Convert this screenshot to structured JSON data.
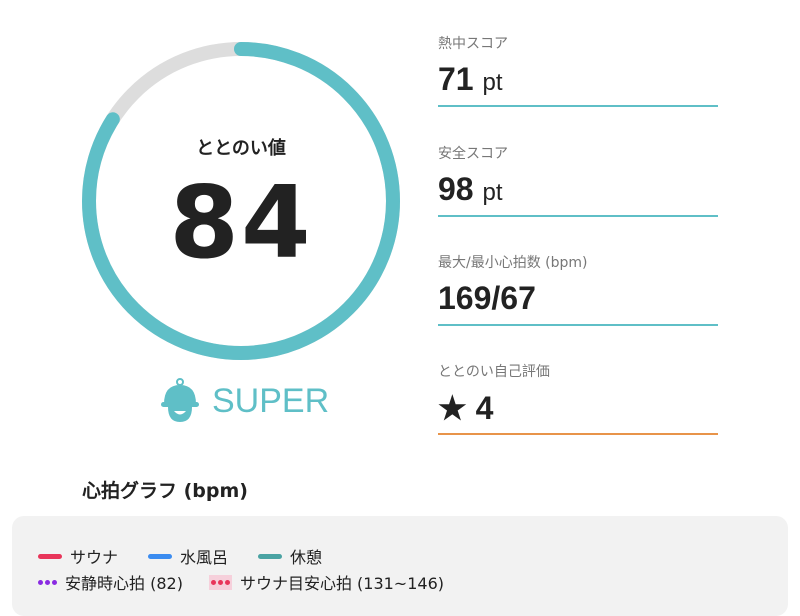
{
  "ring": {
    "label": "ととのい値",
    "value": "84",
    "progress_percent": 84,
    "color": "#5fbfc7",
    "track_color": "#dddddd"
  },
  "grade": {
    "label": "SUPER",
    "icon": "sauna-hat-icon"
  },
  "metrics": [
    {
      "label": "熱中スコア",
      "value": "71",
      "unit": "pt"
    },
    {
      "label": "安全スコア",
      "value": "98",
      "unit": "pt"
    },
    {
      "label": "最大/最小心拍数 (bpm)",
      "value": "169/67",
      "unit": ""
    },
    {
      "label": "ととのい自己評価",
      "value": "★ 4",
      "unit": ""
    }
  ],
  "graph": {
    "title": "心拍グラフ (bpm)",
    "legend": [
      {
        "label": "サウナ",
        "color": "#e8355a"
      },
      {
        "label": "水風呂",
        "color": "#3b8cf0"
      },
      {
        "label": "休憩",
        "color": "#4aa3a3"
      },
      {
        "label": "安静時心拍 (82)",
        "color": "#8a2be2"
      },
      {
        "label": "サウナ目安心拍 (131~146)",
        "color": "#e8355a"
      }
    ]
  }
}
